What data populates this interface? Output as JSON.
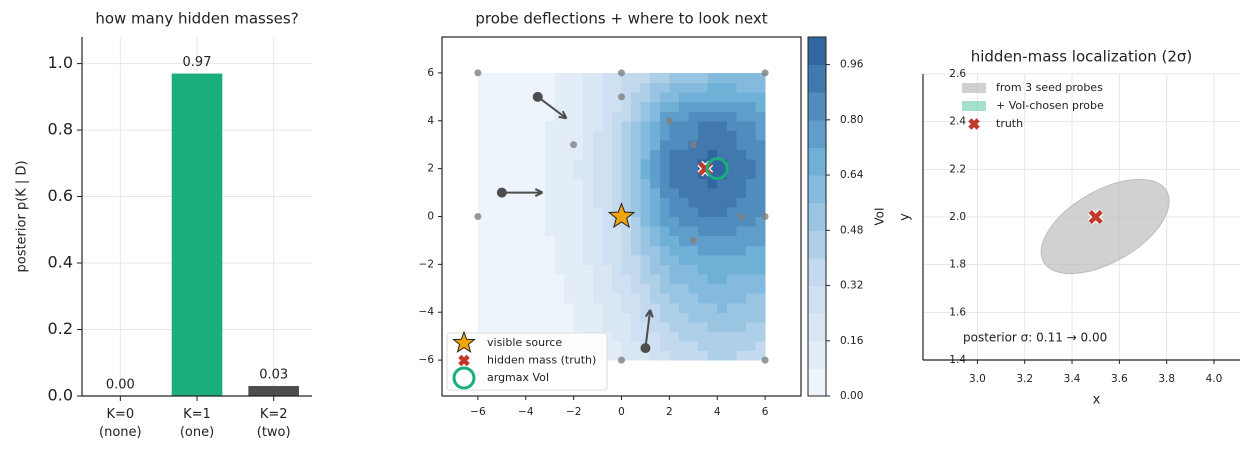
{
  "chart_data": [
    {
      "type": "bar",
      "title": "how many hidden masses?",
      "ylabel": "posterior p(K | D)",
      "categories": [
        "K=0\n(none)",
        "K=1\n(one)",
        "K=2\n(two)"
      ],
      "values": [
        0,
        0.97,
        0.03
      ],
      "value_labels": [
        "0.00",
        "0.97",
        "0.03"
      ],
      "colors": [
        "#7f7f7f",
        "#1aaf7a",
        "#4d4d4d"
      ],
      "ylim": [
        0,
        1.08
      ],
      "yticks": [
        {
          "value": 0,
          "label": "0.0"
        },
        0.2,
        0.4,
        0.6,
        0.8,
        {
          "value": 1,
          "label": "1.0"
        }
      ],
      "grid": true
    },
    {
      "type": "contour",
      "title": "probe deflections + where to look next",
      "x": [
        -6,
        -4,
        -2,
        0,
        2,
        4,
        6
      ],
      "y": [
        -6,
        -4,
        -2,
        0,
        2,
        4,
        6
      ],
      "z": [
        [
          0.01,
          0.02,
          0.05,
          0.15,
          0.3,
          0.4,
          0.35
        ],
        [
          0.01,
          0.03,
          0.08,
          0.22,
          0.45,
          0.55,
          0.5
        ],
        [
          0.02,
          0.04,
          0.1,
          0.3,
          0.6,
          0.7,
          0.65
        ],
        [
          0.02,
          0.05,
          0.12,
          0.35,
          0.8,
          0.9,
          0.8
        ],
        [
          0.02,
          0.05,
          0.14,
          0.4,
          0.9,
          1.0,
          0.85
        ],
        [
          0.02,
          0.04,
          0.12,
          0.35,
          0.8,
          0.9,
          0.75
        ],
        [
          0.02,
          0.04,
          0.1,
          0.3,
          0.45,
          0.55,
          0.55
        ]
      ],
      "levels": [
        0,
        0.08,
        0.16,
        0.24,
        0.32,
        0.4,
        0.48,
        0.56,
        0.64,
        0.72,
        0.8,
        0.88,
        0.96,
        1.04
      ],
      "colorscale": [
        "#f2f7fd",
        "#c6dbef",
        "#6baed6",
        "#2b5d9b"
      ],
      "colorbar_label": "VoI",
      "colorbar_ticks": [
        {
          "value": 0,
          "label": "0.00"
        },
        0.16,
        0.32,
        0.48,
        0.64,
        {
          "value": 0.8,
          "label": "0.80"
        },
        0.96
      ],
      "xlim": [
        -7.5,
        7.5
      ],
      "ylim": [
        -7.5,
        7.5
      ],
      "xticks": [
        {
          "value": -6,
          "label": "−6"
        },
        {
          "value": -4,
          "label": "−4"
        },
        {
          "value": -2,
          "label": "−2"
        },
        0,
        2,
        4,
        6
      ],
      "yticks": [
        {
          "value": -6,
          "label": "−6"
        },
        {
          "value": -4,
          "label": "−4"
        },
        {
          "value": -2,
          "label": "−2"
        },
        0,
        2,
        4,
        6
      ],
      "probes": {
        "x": [
          -6,
          0,
          6,
          0,
          2,
          -2,
          3,
          3,
          5,
          6,
          -6,
          0,
          6
        ],
        "y": [
          6,
          6,
          6,
          5,
          4,
          3,
          3,
          -1,
          0,
          0,
          0,
          -6,
          -6
        ],
        "color": "#808080"
      },
      "arrows": {
        "x": [
          -3.5,
          -5,
          1
        ],
        "y": [
          5,
          1,
          -5.5
        ],
        "dx": [
          1.2,
          1.7,
          0.2
        ],
        "dy": [
          -0.9,
          0,
          1.6
        ],
        "color": "#4d4d4d"
      },
      "markers": [
        {
          "name": "visible source",
          "x": 0,
          "y": 0,
          "color": "#f0a30a",
          "symbol": "star"
        },
        {
          "name": "hidden mass (truth)",
          "x": 3.5,
          "y": 2,
          "color": "#c0392b",
          "symbol": "x"
        },
        {
          "name": "argmax VoI",
          "x": 4,
          "y": 2,
          "color": "#1aaf7a",
          "symbol": "ring"
        }
      ]
    },
    {
      "type": "ellipse",
      "title": "hidden-mass localization (2σ)",
      "xlabel": "x",
      "ylabel": "y",
      "xlim": [
        2.77,
        4.11
      ],
      "ylim": [
        1.4,
        2.6
      ],
      "xticks": [
        {
          "value": 3,
          "label": "3.0"
        },
        3.2,
        3.4,
        3.6,
        3.8,
        {
          "value": 4,
          "label": "4.0"
        }
      ],
      "yticks": [
        1.4,
        1.6,
        1.8,
        {
          "value": 2,
          "label": "2.0"
        },
        2.2,
        2.4,
        2.6
      ],
      "grid": true,
      "ellipses": [
        {
          "name": "from 3 seed probes",
          "color": "#bdbdbd",
          "cx": 3.54,
          "cy": 1.96,
          "rx": 0.3,
          "ry": 0.15,
          "angle": 30
        },
        {
          "name": "+ VoI-chosen probe",
          "color": "#7fd3b4",
          "cx": 3.5,
          "cy": 2,
          "rx": 0,
          "ry": 0,
          "angle": 0
        }
      ],
      "markers": [
        {
          "name": "truth",
          "x": 3.5,
          "y": 2,
          "color": "#c0392b",
          "symbol": "x"
        }
      ],
      "annotation": "posterior σ: 0.11 → 0.00"
    }
  ]
}
